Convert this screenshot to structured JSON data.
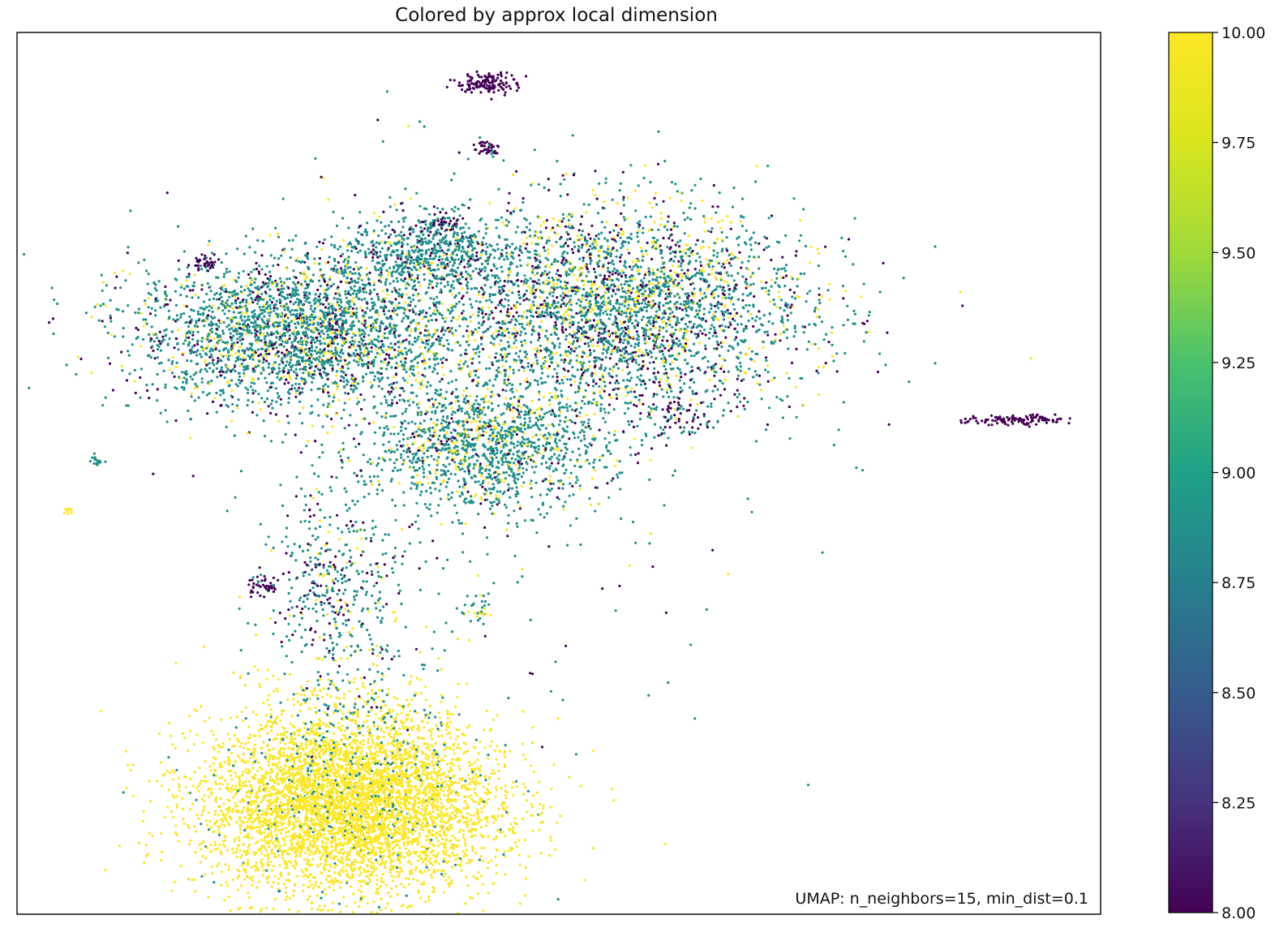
{
  "chart_data": {
    "type": "scatter",
    "title": "Colored by approx local dimension",
    "xlabel": "",
    "ylabel": "",
    "xlim": [
      0,
      100
    ],
    "ylim": [
      0,
      100
    ],
    "x_ticks": [],
    "y_ticks": [],
    "grid": false,
    "annotation": "UMAP: n_neighbors=15, min_dist=0.1",
    "annotation_placement": "bottom-right",
    "colorbar": {
      "label": "",
      "colormap": "viridis",
      "min": 8.0,
      "max": 10.0,
      "ticks": [
        8.0,
        8.25,
        8.5,
        8.75,
        9.0,
        9.25,
        9.5,
        9.75,
        10.0
      ],
      "tick_labels": [
        "8.00",
        "8.25",
        "8.50",
        "8.75",
        "9.00",
        "9.25",
        "9.50",
        "9.75",
        "10.00"
      ]
    },
    "clusters": [
      {
        "name": "dense-blob",
        "cx": 30.7,
        "cy": 12.5,
        "sx": 6.8,
        "sy": 5.0,
        "n": 5200,
        "color_mix": [
          [
            10.0,
            0.96
          ],
          [
            9.0,
            0.04
          ]
        ]
      },
      {
        "name": "bridge-to-blob",
        "cx": 31.5,
        "cy": 22.5,
        "sx": 4.5,
        "sy": 4.0,
        "n": 260,
        "color_mix": [
          [
            10.0,
            0.5
          ],
          [
            9.0,
            0.47
          ],
          [
            8.0,
            0.03
          ]
        ]
      },
      {
        "name": "upper-right-cloud",
        "cx": 55.0,
        "cy": 68.5,
        "sx": 9.0,
        "sy": 6.0,
        "n": 3400,
        "color_mix": [
          [
            9.0,
            0.6
          ],
          [
            10.0,
            0.22
          ],
          [
            8.0,
            0.18
          ]
        ]
      },
      {
        "name": "upper-left-cloud",
        "cx": 26.0,
        "cy": 66.0,
        "sx": 7.5,
        "sy": 4.2,
        "n": 2800,
        "color_mix": [
          [
            9.0,
            0.7
          ],
          [
            10.0,
            0.16
          ],
          [
            8.0,
            0.14
          ]
        ]
      },
      {
        "name": "middle-cloud",
        "cx": 43.0,
        "cy": 53.0,
        "sx": 5.5,
        "sy": 3.6,
        "n": 1400,
        "color_mix": [
          [
            9.0,
            0.74
          ],
          [
            10.0,
            0.2
          ],
          [
            8.0,
            0.06
          ]
        ]
      },
      {
        "name": "upper-center-cloud",
        "cx": 37.5,
        "cy": 75.0,
        "sx": 4.0,
        "sy": 2.2,
        "n": 600,
        "color_mix": [
          [
            9.0,
            0.8
          ],
          [
            8.0,
            0.14
          ],
          [
            10.0,
            0.06
          ]
        ]
      },
      {
        "name": "lower-stem",
        "cx": 29.5,
        "cy": 37.0,
        "sx": 3.2,
        "sy": 6.0,
        "n": 450,
        "color_mix": [
          [
            9.0,
            0.66
          ],
          [
            8.0,
            0.22
          ],
          [
            10.0,
            0.12
          ]
        ]
      },
      {
        "name": "top-arc",
        "cx": 43.5,
        "cy": 94.2,
        "sx": 1.4,
        "sy": 0.6,
        "n": 140,
        "color_mix": [
          [
            8.0,
            1.0
          ]
        ]
      },
      {
        "name": "right-strand",
        "cx": 92.5,
        "cy": 56.0,
        "sx": 2.3,
        "sy": 0.3,
        "n": 120,
        "color_mix": [
          [
            8.0,
            1.0
          ]
        ]
      },
      {
        "name": "left-outlier-a",
        "cx": 7.3,
        "cy": 51.4,
        "sx": 0.3,
        "sy": 0.3,
        "n": 18,
        "color_mix": [
          [
            9.0,
            0.7
          ],
          [
            10.0,
            0.3
          ]
        ]
      },
      {
        "name": "left-outlier-b",
        "cx": 4.7,
        "cy": 45.6,
        "sx": 0.25,
        "sy": 0.2,
        "n": 10,
        "color_mix": [
          [
            10.0,
            1.0
          ]
        ]
      },
      {
        "name": "small-cluster-1",
        "cx": 17.0,
        "cy": 74.0,
        "sx": 0.6,
        "sy": 0.4,
        "n": 35,
        "color_mix": [
          [
            8.0,
            1.0
          ]
        ]
      },
      {
        "name": "small-cluster-2",
        "cx": 22.9,
        "cy": 37.2,
        "sx": 0.8,
        "sy": 0.5,
        "n": 40,
        "color_mix": [
          [
            8.0,
            0.9
          ],
          [
            9.0,
            0.1
          ]
        ]
      },
      {
        "name": "small-cluster-3",
        "cx": 43.4,
        "cy": 86.9,
        "sx": 0.7,
        "sy": 0.6,
        "n": 40,
        "color_mix": [
          [
            8.0,
            0.8
          ],
          [
            9.0,
            0.2
          ]
        ]
      },
      {
        "name": "small-cluster-4",
        "cx": 61.0,
        "cy": 57.0,
        "sx": 1.6,
        "sy": 1.6,
        "n": 70,
        "color_mix": [
          [
            8.0,
            0.8
          ],
          [
            9.0,
            0.2
          ]
        ]
      },
      {
        "name": "small-cluster-5",
        "cx": 39.0,
        "cy": 78.5,
        "sx": 1.0,
        "sy": 0.7,
        "n": 60,
        "color_mix": [
          [
            8.0,
            0.55
          ],
          [
            9.0,
            0.45
          ]
        ]
      },
      {
        "name": "small-cluster-6",
        "cx": 42.5,
        "cy": 34.5,
        "sx": 0.8,
        "sy": 1.2,
        "n": 30,
        "color_mix": [
          [
            9.0,
            0.6
          ],
          [
            10.0,
            0.4
          ]
        ]
      },
      {
        "name": "sparse-halo",
        "cx": 42.0,
        "cy": 52.0,
        "sx": 13.0,
        "sy": 18.0,
        "n": 260,
        "color_mix": [
          [
            9.0,
            0.55
          ],
          [
            8.0,
            0.25
          ],
          [
            10.0,
            0.2
          ]
        ]
      }
    ]
  }
}
